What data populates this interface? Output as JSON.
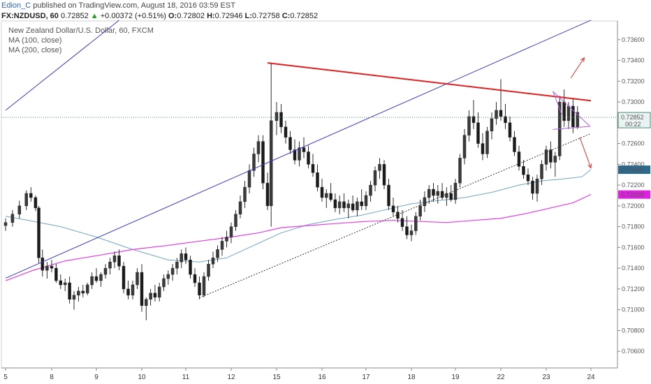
{
  "header": {
    "author": "Edion_C",
    "published_text": "published on TradingView.com, August 18, 2016 03:59 EST",
    "symbol": "FX:NZDUSD, 60",
    "open_label": "O:",
    "open": "0.72802",
    "high_label": "H:",
    "high": "0.72946",
    "low_label": "L:",
    "low": "0.72758",
    "close_label": "C:",
    "close": "0.72852",
    "last": "0.72852",
    "change": "+0.00372 (+0.51%)",
    "up_arrow": "▲"
  },
  "legend": {
    "title": "New Zealand Dollar/U.S. Dollar, 60, FXCM",
    "ma100": "MA (100, close)",
    "ma200": "MA (200, close)"
  },
  "colors": {
    "candle": "#2b2b2b",
    "ma100": "#6fa4c8",
    "ma200": "#e33ee3",
    "channel_upper": "#3b3bd0",
    "resistance": "#e02020",
    "triangle": "#b060e0",
    "arrows": "#e03030",
    "support_dotted": "#333333",
    "badge_blue": "#2b6a8c",
    "badge_magenta": "#e020e0"
  },
  "chart_data": {
    "type": "candlestick",
    "symbol": "FX:NZDUSD",
    "timeframe": "60",
    "ylim": [
      0.7044,
      0.7378
    ],
    "y_ticks": [
      "0.73600",
      "0.73400",
      "0.73200",
      "0.73000",
      "0.72600",
      "0.72400",
      "0.72200",
      "0.72000",
      "0.71800",
      "0.71600",
      "0.71400",
      "0.71200",
      "0.71000",
      "0.70800",
      "0.70600"
    ],
    "x_ticks": [
      {
        "label": "5",
        "day": 5
      },
      {
        "label": "8",
        "day": 8
      },
      {
        "label": "9",
        "day": 9
      },
      {
        "label": "10",
        "day": 10
      },
      {
        "label": "11",
        "day": 11
      },
      {
        "label": "12",
        "day": 12
      },
      {
        "label": "15",
        "day": 15
      },
      {
        "label": "16",
        "day": 16
      },
      {
        "label": "17",
        "day": 17
      },
      {
        "label": "18",
        "day": 18
      },
      {
        "label": "19",
        "day": 19
      },
      {
        "label": "22",
        "day": 22
      },
      {
        "label": "23",
        "day": 23
      },
      {
        "label": "24",
        "day": 24
      }
    ],
    "price_badges": [
      {
        "value": "0.72852",
        "kind": "last",
        "countdown": "00:22"
      },
      {
        "value": "0.72348",
        "kind": "ma100"
      },
      {
        "value": "0.72109",
        "kind": "ma200"
      }
    ],
    "ma100_points": [
      [
        5.0,
        0.719
      ],
      [
        5.5,
        0.7186
      ],
      [
        6.2,
        0.718
      ],
      [
        7.0,
        0.717
      ],
      [
        7.8,
        0.7158
      ],
      [
        8.6,
        0.7148
      ],
      [
        9.3,
        0.7146
      ],
      [
        9.9,
        0.715
      ],
      [
        10.5,
        0.7162
      ],
      [
        11.1,
        0.7174
      ],
      [
        11.7,
        0.7182
      ],
      [
        12.3,
        0.7187
      ],
      [
        12.9,
        0.7191
      ],
      [
        13.4,
        0.7196
      ],
      [
        14.0,
        0.7202
      ],
      [
        14.6,
        0.7205
      ],
      [
        15.2,
        0.7208
      ],
      [
        15.8,
        0.7213
      ],
      [
        16.4,
        0.722
      ],
      [
        16.9,
        0.7224
      ],
      [
        17.4,
        0.7226
      ],
      [
        17.8,
        0.7228
      ],
      [
        18.3,
        0.7235
      ]
    ],
    "ma200_points": [
      [
        5.0,
        0.7128
      ],
      [
        5.6,
        0.7138
      ],
      [
        6.3,
        0.7147
      ],
      [
        7.0,
        0.7152
      ],
      [
        7.8,
        0.7158
      ],
      [
        8.6,
        0.7162
      ],
      [
        9.3,
        0.7166
      ],
      [
        10.0,
        0.717
      ],
      [
        10.6,
        0.7174
      ],
      [
        11.1,
        0.7179
      ],
      [
        11.7,
        0.7181
      ],
      [
        12.3,
        0.7183
      ],
      [
        13.0,
        0.7185
      ],
      [
        13.6,
        0.7186
      ],
      [
        14.2,
        0.7185
      ],
      [
        14.8,
        0.7184
      ],
      [
        15.4,
        0.7186
      ],
      [
        16.0,
        0.7188
      ],
      [
        16.6,
        0.7193
      ],
      [
        17.1,
        0.7198
      ],
      [
        17.6,
        0.7203
      ],
      [
        18.3,
        0.7211
      ]
    ],
    "candles": [
      [
        5.0,
        0.7181,
        0.7188,
        0.7176,
        0.7184
      ],
      [
        5.15,
        0.7184,
        0.7196,
        0.718,
        0.7192
      ],
      [
        5.3,
        0.7192,
        0.7205,
        0.7188,
        0.72
      ],
      [
        5.45,
        0.72,
        0.7215,
        0.7196,
        0.7212
      ],
      [
        5.55,
        0.7212,
        0.7218,
        0.7204,
        0.7208
      ],
      [
        5.65,
        0.7208,
        0.721,
        0.7195,
        0.7198
      ],
      [
        5.72,
        0.7198,
        0.72,
        0.7145,
        0.715
      ],
      [
        5.8,
        0.715,
        0.7158,
        0.7132,
        0.7138
      ],
      [
        5.9,
        0.7138,
        0.7146,
        0.713,
        0.7142
      ],
      [
        6.0,
        0.7142,
        0.7148,
        0.7136,
        0.714
      ],
      [
        6.1,
        0.714,
        0.7144,
        0.7126,
        0.7128
      ],
      [
        6.2,
        0.7128,
        0.7134,
        0.712,
        0.7124
      ],
      [
        6.3,
        0.7124,
        0.713,
        0.7118,
        0.7126
      ],
      [
        6.4,
        0.7126,
        0.7132,
        0.7106,
        0.711
      ],
      [
        6.5,
        0.711,
        0.7118,
        0.71,
        0.7114
      ],
      [
        6.6,
        0.7114,
        0.7122,
        0.7108,
        0.7118
      ],
      [
        6.7,
        0.7118,
        0.7124,
        0.7112,
        0.7116
      ],
      [
        6.8,
        0.7116,
        0.7126,
        0.7114,
        0.7124
      ],
      [
        6.9,
        0.7124,
        0.7136,
        0.712,
        0.7132
      ],
      [
        7.0,
        0.7132,
        0.714,
        0.7126,
        0.7128
      ],
      [
        7.1,
        0.7128,
        0.7136,
        0.7122,
        0.7134
      ],
      [
        7.2,
        0.7134,
        0.7144,
        0.713,
        0.714
      ],
      [
        7.3,
        0.714,
        0.715,
        0.7134,
        0.7146
      ],
      [
        7.4,
        0.7146,
        0.7156,
        0.714,
        0.7152
      ],
      [
        7.5,
        0.7152,
        0.7158,
        0.7138,
        0.7142
      ],
      [
        7.6,
        0.7142,
        0.7146,
        0.7116,
        0.712
      ],
      [
        7.7,
        0.712,
        0.7128,
        0.711,
        0.7114
      ],
      [
        7.8,
        0.7114,
        0.7128,
        0.711,
        0.7124
      ],
      [
        7.9,
        0.7124,
        0.714,
        0.712,
        0.7136
      ],
      [
        8.0,
        0.7136,
        0.7144,
        0.7098,
        0.7104
      ],
      [
        8.1,
        0.7104,
        0.7112,
        0.709,
        0.711
      ],
      [
        8.2,
        0.711,
        0.712,
        0.7104,
        0.7116
      ],
      [
        8.3,
        0.7116,
        0.7124,
        0.7108,
        0.7112
      ],
      [
        8.4,
        0.7112,
        0.7126,
        0.7108,
        0.7122
      ],
      [
        8.5,
        0.7122,
        0.7134,
        0.7118,
        0.713
      ],
      [
        8.6,
        0.713,
        0.7138,
        0.7124,
        0.7134
      ],
      [
        8.7,
        0.7134,
        0.7144,
        0.7128,
        0.714
      ],
      [
        8.8,
        0.714,
        0.715,
        0.7134,
        0.7146
      ],
      [
        8.9,
        0.7146,
        0.7158,
        0.714,
        0.7154
      ],
      [
        9.0,
        0.7154,
        0.716,
        0.7144,
        0.7148
      ],
      [
        9.1,
        0.7148,
        0.7152,
        0.713,
        0.7134
      ],
      [
        9.2,
        0.7134,
        0.714,
        0.7122,
        0.7126
      ],
      [
        9.3,
        0.7126,
        0.7132,
        0.711,
        0.7114
      ],
      [
        9.4,
        0.7114,
        0.7136,
        0.7112,
        0.7132
      ],
      [
        9.5,
        0.7132,
        0.7148,
        0.7128,
        0.7144
      ],
      [
        9.6,
        0.7144,
        0.7156,
        0.714,
        0.715
      ],
      [
        9.7,
        0.715,
        0.7162,
        0.7146,
        0.7158
      ],
      [
        9.8,
        0.7158,
        0.717,
        0.7152,
        0.7166
      ],
      [
        9.9,
        0.7166,
        0.7176,
        0.716,
        0.717
      ],
      [
        10.0,
        0.717,
        0.7184,
        0.7164,
        0.718
      ],
      [
        10.1,
        0.718,
        0.7196,
        0.7176,
        0.7192
      ],
      [
        10.2,
        0.7192,
        0.721,
        0.7188,
        0.7204
      ],
      [
        10.3,
        0.7204,
        0.7224,
        0.7198,
        0.7218
      ],
      [
        10.4,
        0.7218,
        0.724,
        0.7212,
        0.7234
      ],
      [
        10.5,
        0.7234,
        0.7256,
        0.7228,
        0.725
      ],
      [
        10.6,
        0.725,
        0.7268,
        0.7242,
        0.7262
      ],
      [
        10.7,
        0.7262,
        0.7268,
        0.7216,
        0.7222
      ],
      [
        10.8,
        0.7222,
        0.7232,
        0.7196,
        0.72
      ],
      [
        10.88,
        0.72,
        0.7338,
        0.718,
        0.7282
      ],
      [
        11.0,
        0.7282,
        0.73,
        0.7268,
        0.729
      ],
      [
        11.1,
        0.729,
        0.7298,
        0.727,
        0.7276
      ],
      [
        11.2,
        0.7276,
        0.7282,
        0.726,
        0.7266
      ],
      [
        11.3,
        0.7266,
        0.7272,
        0.725,
        0.7254
      ],
      [
        11.4,
        0.7254,
        0.7264,
        0.724,
        0.7244
      ],
      [
        11.5,
        0.7244,
        0.7262,
        0.7238,
        0.7256
      ],
      [
        11.6,
        0.7256,
        0.7266,
        0.7246,
        0.7252
      ],
      [
        11.7,
        0.7252,
        0.7258,
        0.7236,
        0.724
      ],
      [
        11.8,
        0.724,
        0.725,
        0.7228,
        0.7232
      ],
      [
        11.9,
        0.7232,
        0.724,
        0.7214,
        0.7218
      ],
      [
        12.0,
        0.7218,
        0.7226,
        0.7204,
        0.7208
      ],
      [
        12.1,
        0.7208,
        0.7216,
        0.7198,
        0.7212
      ],
      [
        12.2,
        0.7212,
        0.7222,
        0.7204,
        0.7206
      ],
      [
        12.3,
        0.7206,
        0.7212,
        0.7194,
        0.7198
      ],
      [
        12.4,
        0.7198,
        0.721,
        0.7192,
        0.7204
      ],
      [
        12.5,
        0.7204,
        0.7212,
        0.7194,
        0.7198
      ],
      [
        12.6,
        0.7198,
        0.7206,
        0.7188,
        0.7202
      ],
      [
        12.7,
        0.7202,
        0.721,
        0.7194,
        0.7196
      ],
      [
        12.8,
        0.7196,
        0.7208,
        0.719,
        0.7204
      ],
      [
        12.9,
        0.7204,
        0.7216,
        0.7196,
        0.72
      ],
      [
        13.0,
        0.72,
        0.7214,
        0.7196,
        0.721
      ],
      [
        13.1,
        0.721,
        0.7224,
        0.7204,
        0.722
      ],
      [
        13.2,
        0.722,
        0.7238,
        0.7214,
        0.7234
      ],
      [
        13.3,
        0.7234,
        0.7246,
        0.7226,
        0.724
      ],
      [
        13.4,
        0.724,
        0.7244,
        0.7216,
        0.722
      ],
      [
        13.5,
        0.722,
        0.7226,
        0.7196,
        0.72
      ],
      [
        13.6,
        0.72,
        0.7208,
        0.719,
        0.7194
      ],
      [
        13.7,
        0.7194,
        0.72,
        0.7184,
        0.7188
      ],
      [
        13.8,
        0.7188,
        0.7196,
        0.7176,
        0.718
      ],
      [
        13.9,
        0.718,
        0.719,
        0.7168,
        0.7172
      ],
      [
        14.0,
        0.7172,
        0.7182,
        0.7166,
        0.7176
      ],
      [
        14.1,
        0.7176,
        0.7194,
        0.7172,
        0.719
      ],
      [
        14.2,
        0.719,
        0.7206,
        0.7186,
        0.72
      ],
      [
        14.3,
        0.72,
        0.7214,
        0.7194,
        0.7208
      ],
      [
        14.4,
        0.7208,
        0.722,
        0.7202,
        0.7216
      ],
      [
        14.5,
        0.7216,
        0.7222,
        0.7204,
        0.721
      ],
      [
        14.6,
        0.721,
        0.722,
        0.7202,
        0.7214
      ],
      [
        14.7,
        0.7214,
        0.7222,
        0.7206,
        0.7208
      ],
      [
        14.8,
        0.7208,
        0.7218,
        0.72,
        0.7212
      ],
      [
        14.9,
        0.7212,
        0.722,
        0.7204,
        0.7206
      ],
      [
        15.0,
        0.7206,
        0.7226,
        0.7202,
        0.7222
      ],
      [
        15.1,
        0.7222,
        0.725,
        0.7218,
        0.7246
      ],
      [
        15.2,
        0.7246,
        0.7274,
        0.724,
        0.7268
      ],
      [
        15.3,
        0.7268,
        0.7292,
        0.7262,
        0.7286
      ],
      [
        15.4,
        0.7286,
        0.7302,
        0.7274,
        0.728
      ],
      [
        15.5,
        0.728,
        0.729,
        0.7256,
        0.726
      ],
      [
        15.6,
        0.726,
        0.727,
        0.7244,
        0.725
      ],
      [
        15.7,
        0.725,
        0.7276,
        0.7246,
        0.7272
      ],
      [
        15.8,
        0.7272,
        0.729,
        0.7264,
        0.7284
      ],
      [
        15.9,
        0.7284,
        0.73,
        0.7278,
        0.7292
      ],
      [
        16.0,
        0.7292,
        0.7322,
        0.7282,
        0.7286
      ],
      [
        16.1,
        0.7286,
        0.7298,
        0.7274,
        0.728
      ],
      [
        16.2,
        0.728,
        0.7286,
        0.7262,
        0.7266
      ],
      [
        16.3,
        0.7266,
        0.7272,
        0.7248,
        0.7252
      ],
      [
        16.4,
        0.7252,
        0.7258,
        0.7234,
        0.7238
      ],
      [
        16.5,
        0.7238,
        0.7244,
        0.7226,
        0.723
      ],
      [
        16.6,
        0.723,
        0.7236,
        0.722,
        0.7224
      ],
      [
        16.7,
        0.7224,
        0.7228,
        0.7206,
        0.7212
      ],
      [
        16.8,
        0.7212,
        0.723,
        0.7204,
        0.7226
      ],
      [
        16.9,
        0.7226,
        0.7244,
        0.722,
        0.724
      ],
      [
        17.0,
        0.724,
        0.7258,
        0.7234,
        0.7254
      ],
      [
        17.1,
        0.7254,
        0.7262,
        0.7236,
        0.7242
      ],
      [
        17.2,
        0.7242,
        0.7252,
        0.7228,
        0.7248
      ],
      [
        17.3,
        0.7248,
        0.7306,
        0.7244,
        0.73
      ],
      [
        17.4,
        0.73,
        0.7312,
        0.7276,
        0.7282
      ],
      [
        17.5,
        0.7282,
        0.73,
        0.7274,
        0.7296
      ],
      [
        17.6,
        0.7296,
        0.7304,
        0.727,
        0.7276
      ],
      [
        17.7,
        0.7276,
        0.7296,
        0.7274,
        0.729
      ]
    ]
  }
}
